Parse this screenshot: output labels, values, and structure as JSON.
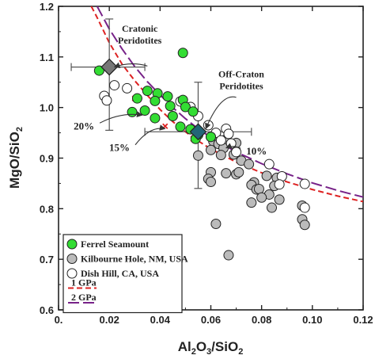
{
  "chart_data": {
    "type": "scatter",
    "xlabel_parts": [
      "Al",
      "2",
      "O",
      "3",
      "/SiO",
      "2"
    ],
    "ylabel_parts": [
      "MgO/SiO",
      "2"
    ],
    "xlim": [
      0,
      0.12
    ],
    "ylim": [
      0.6,
      1.2
    ],
    "xticks": [
      0,
      0.02,
      0.04,
      0.06,
      0.08,
      0.1,
      0.12
    ],
    "xtick_labels": [
      "0.",
      "0.02",
      "0.04",
      "0.06",
      "0.08",
      "0.10",
      "0.12"
    ],
    "yticks": [
      0.6,
      0.7,
      0.8,
      0.9,
      1.0,
      1.1,
      1.2
    ],
    "ytick_labels": [
      "0.6",
      "0.7",
      "0.8",
      "0.9",
      "1.0",
      "1.1",
      "1.2"
    ],
    "grid": false,
    "legend_position": "bottom-left",
    "series": [
      {
        "name": "Ferrel Seamount",
        "marker": "circle",
        "color": "#33dd33",
        "points": [
          [
            0.049,
            1.108
          ],
          [
            0.016,
            1.073
          ],
          [
            0.035,
            1.033
          ],
          [
            0.039,
            1.028
          ],
          [
            0.043,
            1.022
          ],
          [
            0.031,
            1.018
          ],
          [
            0.038,
            1.013
          ],
          [
            0.049,
            1.015
          ],
          [
            0.044,
            1.003
          ],
          [
            0.05,
            1.001
          ],
          [
            0.053,
            0.992
          ],
          [
            0.034,
            0.994
          ],
          [
            0.029,
            0.991
          ],
          [
            0.045,
            0.983
          ],
          [
            0.038,
            0.979
          ],
          [
            0.048,
            0.962
          ],
          [
            0.052,
            0.957
          ],
          [
            0.055,
            0.946
          ],
          [
            0.06,
            0.942
          ],
          [
            0.054,
            0.938
          ]
        ]
      },
      {
        "name": "Kilbourne Hole, NM, USA",
        "marker": "circle",
        "color": "#bbbbbb",
        "points": [
          [
            0.061,
            0.933
          ],
          [
            0.063,
            0.928
          ],
          [
            0.066,
            0.937
          ],
          [
            0.07,
            0.93
          ],
          [
            0.065,
            0.92
          ],
          [
            0.06,
            0.916
          ],
          [
            0.064,
            0.906
          ],
          [
            0.069,
            0.907
          ],
          [
            0.072,
            0.895
          ],
          [
            0.075,
            0.888
          ],
          [
            0.055,
            0.905
          ],
          [
            0.06,
            0.872
          ],
          [
            0.059,
            0.859
          ],
          [
            0.06,
            0.853
          ],
          [
            0.066,
            0.87
          ],
          [
            0.07,
            0.868
          ],
          [
            0.071,
            0.872
          ],
          [
            0.082,
            0.865
          ],
          [
            0.086,
            0.861
          ],
          [
            0.077,
            0.852
          ],
          [
            0.076,
            0.847
          ],
          [
            0.078,
            0.838
          ],
          [
            0.079,
            0.839
          ],
          [
            0.085,
            0.845
          ],
          [
            0.083,
            0.828
          ],
          [
            0.087,
            0.818
          ],
          [
            0.08,
            0.822
          ],
          [
            0.076,
            0.812
          ],
          [
            0.084,
            0.802
          ],
          [
            0.096,
            0.806
          ],
          [
            0.096,
            0.779
          ],
          [
            0.097,
            0.768
          ],
          [
            0.062,
            0.77
          ],
          [
            0.067,
            0.708
          ]
        ]
      },
      {
        "name": "Dish Hill, CA, USA",
        "marker": "circle",
        "color": "#ffffff",
        "points": [
          [
            0.022,
            1.044
          ],
          [
            0.027,
            1.038
          ],
          [
            0.018,
            1.023
          ],
          [
            0.019,
            1.014
          ],
          [
            0.048,
            1.012
          ],
          [
            0.052,
            1.001
          ],
          [
            0.055,
            0.983
          ],
          [
            0.059,
            0.965
          ],
          [
            0.066,
            0.958
          ],
          [
            0.067,
            0.948
          ],
          [
            0.062,
            0.95
          ],
          [
            0.06,
            0.942
          ],
          [
            0.064,
            0.935
          ],
          [
            0.068,
            0.929
          ],
          [
            0.07,
            0.912
          ],
          [
            0.083,
            0.888
          ],
          [
            0.088,
            0.864
          ],
          [
            0.087,
            0.848
          ],
          [
            0.097,
            0.849
          ],
          [
            0.097,
            0.802
          ]
        ]
      }
    ],
    "curves": [
      {
        "name": "1 GPa",
        "color": "#dd2222",
        "dash": "dash",
        "points": [
          [
            0.0129,
            1.2
          ],
          [
            0.015,
            1.18
          ],
          [
            0.02,
            1.128
          ],
          [
            0.025,
            1.086
          ],
          [
            0.03,
            1.053
          ],
          [
            0.035,
            1.024
          ],
          [
            0.04,
            0.996
          ],
          [
            0.045,
            0.972
          ],
          [
            0.05,
            0.952
          ],
          [
            0.055,
            0.934
          ],
          [
            0.06,
            0.918
          ],
          [
            0.07,
            0.892
          ],
          [
            0.08,
            0.871
          ],
          [
            0.09,
            0.853
          ],
          [
            0.1,
            0.838
          ],
          [
            0.11,
            0.825
          ],
          [
            0.12,
            0.814
          ]
        ]
      },
      {
        "name": "2 GPa",
        "color": "#772288",
        "dash": "longdash",
        "points": [
          [
            0.0152,
            1.2
          ],
          [
            0.02,
            1.155
          ],
          [
            0.025,
            1.116
          ],
          [
            0.03,
            1.081
          ],
          [
            0.035,
            1.051
          ],
          [
            0.04,
            1.025
          ],
          [
            0.045,
            1.0
          ],
          [
            0.05,
            0.978
          ],
          [
            0.055,
            0.958
          ],
          [
            0.06,
            0.941
          ],
          [
            0.07,
            0.912
          ],
          [
            0.08,
            0.889
          ],
          [
            0.09,
            0.869
          ],
          [
            0.1,
            0.851
          ],
          [
            0.11,
            0.836
          ],
          [
            0.12,
            0.823
          ]
        ]
      }
    ],
    "melt_ticks": [
      [
        0.03,
        1.018
      ],
      [
        0.042,
        0.963
      ],
      [
        0.053,
        0.938
      ]
    ],
    "percent_labels": [
      {
        "text": "20%",
        "at": [
          0.01,
          0.963
        ],
        "arrow_to": [
          0.033,
          0.985
        ]
      },
      {
        "text": "15%",
        "at": [
          0.024,
          0.92
        ],
        "arrow_to": [
          0.042,
          0.958
        ]
      },
      {
        "text": "10%",
        "at": [
          0.078,
          0.913
        ],
        "arrow_to": [
          0.066,
          0.92
        ]
      }
    ],
    "reference_points": [
      {
        "name": "Cratonic Peridotites",
        "label_lines": [
          "Cratonic",
          "Peridotites"
        ],
        "x": 0.02,
        "y": 1.08,
        "xerr": [
          0.005,
          0.034
        ],
        "yerr": [
          0.955,
          1.175
        ],
        "color": "#777777",
        "label_at": [
          0.032,
          1.15
        ],
        "arrow_from": [
          0.035,
          1.082
        ],
        "arrow_to": [
          0.022,
          1.08
        ]
      },
      {
        "name": "Off-Craton Peridotites",
        "label_lines": [
          "Off-Craton",
          "Peridotites"
        ],
        "x": 0.055,
        "y": 0.952,
        "xerr": [
          0.034,
          0.076
        ],
        "yerr": [
          0.84,
          1.05
        ],
        "color": "#226677",
        "label_at": [
          0.072,
          1.06
        ],
        "arrow_from": [
          0.07,
          1.02
        ],
        "arrow_to": [
          0.058,
          0.958
        ]
      }
    ],
    "legend": [
      {
        "label": "Ferrel Seamount",
        "kind": "circle",
        "color": "#33dd33"
      },
      {
        "label": "Kilbourne Hole, NM, USA",
        "kind": "circle",
        "color": "#bbbbbb"
      },
      {
        "label": "Dish Hill, CA, USA",
        "kind": "circle",
        "color": "#ffffff"
      },
      {
        "label": "1 GPa",
        "kind": "line",
        "color": "#dd2222"
      },
      {
        "label": "2 GPa",
        "kind": "line",
        "color": "#772288"
      }
    ]
  }
}
